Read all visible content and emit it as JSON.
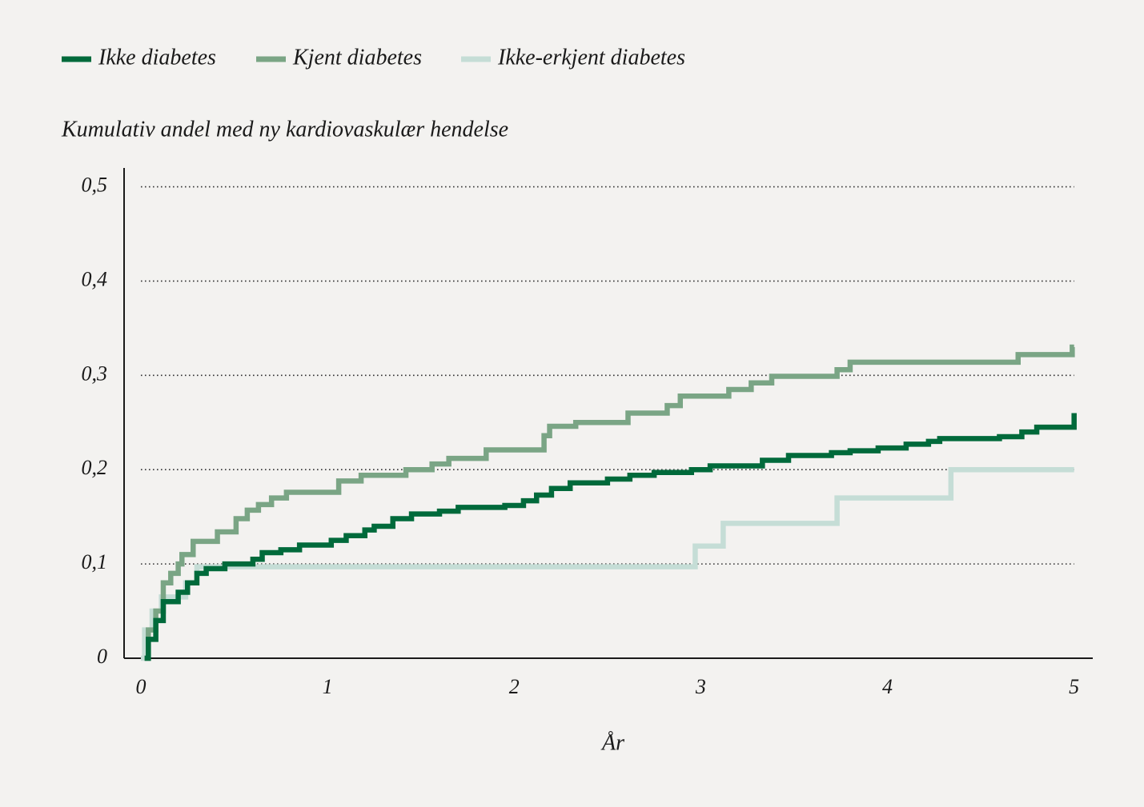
{
  "chart_data": {
    "type": "step",
    "y_axis_title": "Kumulativ andel med ny kardiovaskulær hendelse",
    "x_axis_title": "År",
    "xlim": [
      -0.09,
      5.1
    ],
    "ylim": [
      0,
      0.52
    ],
    "xticks": [
      0,
      1,
      2,
      3,
      4,
      5
    ],
    "yticks": [
      0,
      {
        "value": 0.1,
        "label": "0,1"
      },
      {
        "value": 0.2,
        "label": "0,2"
      },
      {
        "value": 0.3,
        "label": "0,3"
      },
      {
        "value": 0.4,
        "label": "0,4"
      },
      {
        "value": 0.5,
        "label": "0,5"
      }
    ],
    "grid": true,
    "legend": "top",
    "series": [
      {
        "name": "Ikke diabetes",
        "color": "#006a3b",
        "x": [
          0.02,
          0.04,
          0.08,
          0.12,
          0.2,
          0.25,
          0.3,
          0.35,
          0.45,
          0.6,
          0.65,
          0.75,
          0.85,
          1.02,
          1.1,
          1.2,
          1.25,
          1.35,
          1.45,
          1.6,
          1.7,
          1.95,
          2.05,
          2.12,
          2.2,
          2.3,
          2.5,
          2.62,
          2.75,
          2.95,
          3.05,
          3.33,
          3.47,
          3.7,
          3.8,
          3.95,
          4.1,
          4.22,
          4.28,
          4.6,
          4.72,
          4.8,
          5
        ],
        "values": [
          0,
          0.02,
          0.04,
          0.06,
          0.07,
          0.08,
          0.09,
          0.095,
          0.1,
          0.105,
          0.112,
          0.115,
          0.12,
          0.125,
          0.13,
          0.136,
          0.14,
          0.148,
          0.153,
          0.156,
          0.16,
          0.162,
          0.167,
          0.173,
          0.18,
          0.186,
          0.19,
          0.194,
          0.197,
          0.2,
          0.204,
          0.21,
          0.215,
          0.218,
          0.22,
          0.223,
          0.227,
          0.23,
          0.233,
          0.235,
          0.24,
          0.245,
          0.26
        ]
      },
      {
        "name": "Kjent diabetes",
        "color": "#7aa585",
        "x": [
          0.02,
          0.04,
          0.08,
          0.12,
          0.16,
          0.2,
          0.22,
          0.28,
          0.41,
          0.51,
          0.57,
          0.63,
          0.7,
          0.78,
          1.06,
          1.18,
          1.42,
          1.56,
          1.65,
          1.85,
          2.16,
          2.19,
          2.33,
          2.61,
          2.82,
          2.89,
          3.15,
          3.27,
          3.38,
          3.73,
          3.8,
          4.7,
          4.99,
          5
        ],
        "values": [
          0,
          0.03,
          0.05,
          0.08,
          0.09,
          0.1,
          0.11,
          0.124,
          0.134,
          0.148,
          0.157,
          0.163,
          0.17,
          0.176,
          0.188,
          0.194,
          0.2,
          0.206,
          0.212,
          0.221,
          0.236,
          0.246,
          0.25,
          0.26,
          0.268,
          0.278,
          0.285,
          0.292,
          0.299,
          0.306,
          0.314,
          0.322,
          0.33,
          0.33
        ]
      },
      {
        "name": "Ikke-erkjent diabetes",
        "color": "#c5ddd6",
        "x": [
          0,
          0.02,
          0.06,
          0.11,
          0.24,
          0.3,
          2.97,
          3.12,
          3.73,
          4.34,
          5
        ],
        "values": [
          0,
          0.03,
          0.05,
          0.065,
          0.08,
          0.097,
          0.119,
          0.143,
          0.17,
          0.2,
          0.2
        ]
      }
    ]
  }
}
